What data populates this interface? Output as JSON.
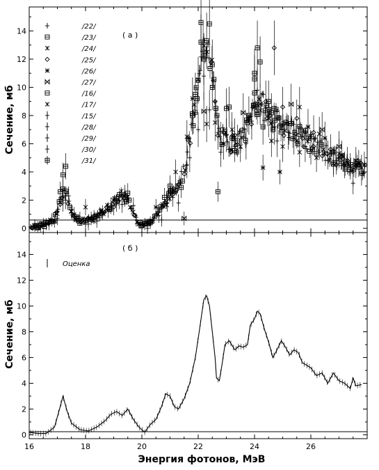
{
  "chart_data": [
    {
      "type": "scatter",
      "panel_label": "( а )",
      "ylabel": "Сечение, мб",
      "xlim": [
        16,
        28
      ],
      "ylim": [
        -0.3,
        15.7
      ],
      "xticks": [
        "16",
        "18",
        "20",
        "22",
        "24",
        "26"
      ],
      "yticks": [
        "0",
        "2",
        "4",
        "6",
        "8",
        "10",
        "12",
        "14"
      ],
      "legend_position": "top-left",
      "series": [
        {
          "name": "/22/",
          "marker": "plus",
          "values": [
            [
              16.3,
              0.1
            ],
            [
              16.7,
              0.3
            ],
            [
              17.0,
              0.7
            ],
            [
              17.2,
              1.8
            ],
            [
              17.4,
              2.3
            ],
            [
              17.6,
              1.0
            ],
            [
              18.0,
              0.3
            ],
            [
              18.4,
              0.5
            ],
            [
              18.8,
              1.3
            ],
            [
              19.2,
              2.0
            ],
            [
              19.4,
              2.4
            ],
            [
              19.8,
              0.6
            ]
          ]
        },
        {
          "name": "/23/",
          "marker": "square",
          "values": [
            [
              17.2,
              3.8
            ],
            [
              17.3,
              4.4
            ],
            [
              20.8,
              2.2
            ],
            [
              21.0,
              3.0
            ],
            [
              21.8,
              8.0
            ],
            [
              22.0,
              10.5
            ],
            [
              22.1,
              14.6
            ],
            [
              22.2,
              12.0
            ],
            [
              22.3,
              13.3
            ],
            [
              22.4,
              14.5
            ],
            [
              22.5,
              10.0
            ],
            [
              22.7,
              2.6
            ],
            [
              23.0,
              8.5
            ],
            [
              23.4,
              6.2
            ],
            [
              23.8,
              8.0
            ],
            [
              24.0,
              11.0
            ],
            [
              24.1,
              12.8
            ],
            [
              24.2,
              11.8
            ],
            [
              24.5,
              9.0
            ]
          ]
        },
        {
          "name": "/24/",
          "marker": "asterisk",
          "values": [
            [
              16.9,
              0.5
            ],
            [
              17.5,
              1.2
            ],
            [
              18.0,
              1.5
            ],
            [
              21.2,
              4.0
            ],
            [
              21.6,
              6.5
            ],
            [
              22.6,
              7.5
            ],
            [
              23.2,
              7.0
            ],
            [
              24.6,
              6.2
            ],
            [
              25.0,
              5.8
            ],
            [
              25.6,
              5.4
            ],
            [
              26.2,
              5.0
            ],
            [
              26.8,
              4.6
            ],
            [
              27.4,
              4.4
            ],
            [
              27.8,
              4.3
            ]
          ]
        },
        {
          "name": "/25/",
          "marker": "diamond",
          "values": [
            [
              18.2,
              0.7
            ],
            [
              19.0,
              1.5
            ],
            [
              22.6,
              9.0
            ],
            [
              23.3,
              6.6
            ],
            [
              24.4,
              9.0
            ],
            [
              24.7,
              12.8
            ],
            [
              25.0,
              8.6
            ],
            [
              25.5,
              7.8
            ],
            [
              26.1,
              6.8
            ],
            [
              26.7,
              5.6
            ],
            [
              27.3,
              4.8
            ]
          ]
        },
        {
          "name": "/26/",
          "marker": "star",
          "values": [
            [
              18.5,
              1.0
            ],
            [
              20.5,
              1.5
            ],
            [
              21.8,
              9.2
            ],
            [
              22.9,
              6.0
            ],
            [
              24.3,
              4.3
            ],
            [
              24.9,
              4.0
            ],
            [
              25.9,
              7.2
            ],
            [
              26.5,
              6.4
            ],
            [
              27.1,
              5.2
            ],
            [
              27.7,
              4.6
            ]
          ]
        },
        {
          "name": "/27/",
          "marker": "bowtie",
          "values": [
            [
              21.5,
              0.7
            ],
            [
              22.2,
              8.3
            ],
            [
              23.6,
              8.2
            ],
            [
              24.2,
              8.8
            ],
            [
              25.3,
              8.8
            ],
            [
              26.4,
              7.0
            ],
            [
              27.0,
              5.8
            ],
            [
              27.6,
              4.8
            ]
          ]
        },
        {
          "name": "/16/",
          "marker": "square",
          "values": [
            [
              16.5,
              0.3
            ],
            [
              17.1,
              2.6
            ],
            [
              19.5,
              2.5
            ],
            [
              20.0,
              0.2
            ],
            [
              20.3,
              0.4
            ],
            [
              21.4,
              2.9
            ],
            [
              21.9,
              9.5
            ],
            [
              23.1,
              8.6
            ],
            [
              24.0,
              9.6
            ],
            [
              24.3,
              7.2
            ]
          ]
        },
        {
          "name": "/17/",
          "marker": "asterisk",
          "values": [
            [
              22.3,
              7.4
            ],
            [
              23.5,
              5.8
            ],
            [
              24.5,
              7.8
            ],
            [
              25.6,
              8.6
            ],
            [
              26.3,
              6.7
            ],
            [
              27.0,
              5.3
            ],
            [
              27.6,
              4.5
            ],
            [
              27.9,
              4.5
            ]
          ]
        },
        {
          "name": "/15/",
          "marker": "plus-bar",
          "values": [
            [
              16.2,
              0.2
            ],
            [
              16.8,
              0.6
            ],
            [
              18.1,
              0.3
            ],
            [
              18.6,
              1.1
            ],
            [
              19.1,
              1.8
            ],
            [
              20.6,
              0.9
            ],
            [
              21.1,
              2.2
            ],
            [
              22.0,
              7.0
            ],
            [
              22.8,
              5.4
            ],
            [
              23.7,
              6.0
            ],
            [
              24.8,
              6.2
            ],
            [
              25.8,
              5.8
            ],
            [
              26.9,
              4.8
            ],
            [
              27.5,
              3.2
            ]
          ]
        },
        {
          "name": "/28/",
          "marker": "plus-bar",
          "values": [
            [
              17.0,
              1.2
            ],
            [
              19.7,
              1.6
            ],
            [
              20.2,
              0.0
            ],
            [
              21.3,
              1.8
            ],
            [
              22.4,
              8.4
            ],
            [
              23.3,
              5.8
            ],
            [
              24.7,
              7.2
            ],
            [
              26.0,
              5.6
            ],
            [
              27.2,
              4.5
            ]
          ]
        },
        {
          "name": "/29/",
          "marker": "plus-bar",
          "values": [
            [
              16.4,
              0.1
            ],
            [
              17.8,
              0.7
            ],
            [
              19.3,
              1.7
            ],
            [
              20.7,
              0.6
            ],
            [
              21.7,
              5.0
            ],
            [
              22.7,
              6.8
            ],
            [
              23.9,
              7.6
            ],
            [
              25.2,
              6.8
            ],
            [
              26.6,
              5.2
            ],
            [
              27.8,
              3.9
            ]
          ]
        },
        {
          "name": "/30/",
          "marker": "plus-bar",
          "values": [
            [
              16.6,
              0.3
            ],
            [
              17.3,
              2.0
            ],
            [
              18.9,
              1.6
            ],
            [
              20.9,
              1.8
            ],
            [
              21.6,
              4.5
            ],
            [
              22.2,
              10.8
            ],
            [
              23.0,
              6.6
            ],
            [
              24.1,
              9.8
            ],
            [
              25.4,
              6.4
            ],
            [
              26.8,
              4.8
            ]
          ]
        },
        {
          "name": "/31/",
          "marker": "square-plus",
          "values": [
            [
              16.2,
              0.2
            ],
            [
              17.2,
              2.8
            ],
            [
              18.3,
              0.8
            ],
            [
              19.4,
              2.2
            ],
            [
              20.1,
              0.3
            ],
            [
              21.0,
              2.6
            ],
            [
              22.1,
              13.2
            ],
            [
              22.5,
              11.6
            ],
            [
              23.2,
              6.4
            ],
            [
              24.0,
              10.6
            ],
            [
              24.6,
              8.2
            ]
          ]
        }
      ],
      "envelope": {
        "x": [
          16.0,
          16.5,
          16.9,
          17.1,
          17.3,
          17.5,
          17.8,
          18.3,
          18.7,
          19.0,
          19.3,
          19.5,
          19.8,
          20.0,
          20.3,
          20.6,
          20.9,
          21.2,
          21.5,
          21.8,
          22.0,
          22.2,
          22.35,
          22.5,
          22.7,
          23.0,
          23.3,
          23.6,
          24.0,
          24.2,
          24.5,
          24.8,
          25.2,
          25.6,
          26.0,
          26.4,
          26.8,
          27.2,
          27.6,
          28.0
        ],
        "y": [
          0.1,
          0.2,
          0.6,
          2.0,
          2.6,
          1.1,
          0.5,
          0.7,
          1.3,
          1.8,
          2.4,
          2.0,
          0.7,
          0.2,
          0.5,
          1.2,
          2.0,
          3.0,
          4.0,
          7.5,
          10.0,
          13.0,
          13.5,
          11.0,
          6.8,
          6.2,
          6.0,
          6.4,
          8.6,
          9.0,
          8.0,
          7.6,
          7.2,
          6.6,
          6.0,
          5.6,
          5.0,
          4.6,
          4.4,
          4.3
        ]
      }
    },
    {
      "type": "line",
      "panel_label": "( б )",
      "legend_label": "Оценка",
      "ylabel": "Сечение, мб",
      "xlabel": "Энергия фотонов, МэВ",
      "xlim": [
        16,
        28
      ],
      "ylim": [
        -0.3,
        15.7
      ],
      "xticks": [
        "16",
        "18",
        "20",
        "22",
        "24",
        "26"
      ],
      "yticks": [
        "0",
        "2",
        "4",
        "6",
        "8",
        "10",
        "12",
        "14"
      ],
      "series": [
        {
          "name": "Оценка",
          "x": [
            16.0,
            16.3,
            16.6,
            16.9,
            17.1,
            17.2,
            17.35,
            17.5,
            17.8,
            18.1,
            18.4,
            18.7,
            18.9,
            19.1,
            19.3,
            19.5,
            19.7,
            19.9,
            20.1,
            20.3,
            20.5,
            20.7,
            20.85,
            21.0,
            21.15,
            21.3,
            21.5,
            21.7,
            21.9,
            22.05,
            22.2,
            22.3,
            22.4,
            22.5,
            22.6,
            22.65,
            22.75,
            22.85,
            22.95,
            23.1,
            23.3,
            23.45,
            23.6,
            23.75,
            23.85,
            24.0,
            24.1,
            24.2,
            24.35,
            24.5,
            24.65,
            24.8,
            24.95,
            25.1,
            25.25,
            25.4,
            25.55,
            25.7,
            25.85,
            26.0,
            26.2,
            26.4,
            26.6,
            26.8,
            27.0,
            27.2,
            27.4,
            27.5,
            27.6,
            27.8
          ],
          "y": [
            0.2,
            0.1,
            0.1,
            0.6,
            2.2,
            3.0,
            1.8,
            0.9,
            0.4,
            0.3,
            0.6,
            1.1,
            1.6,
            1.8,
            1.5,
            2.0,
            1.2,
            0.6,
            0.2,
            0.8,
            1.2,
            2.2,
            3.2,
            3.0,
            2.2,
            2.0,
            2.8,
            4.0,
            6.0,
            8.2,
            10.5,
            10.8,
            10.0,
            8.0,
            6.0,
            4.4,
            4.2,
            5.5,
            7.0,
            7.3,
            6.6,
            6.9,
            6.8,
            7.0,
            8.5,
            9.0,
            9.6,
            9.4,
            8.2,
            7.2,
            6.0,
            6.6,
            7.3,
            6.8,
            6.2,
            6.6,
            6.4,
            5.6,
            5.4,
            5.2,
            4.6,
            4.8,
            4.0,
            4.8,
            4.2,
            4.0,
            3.6,
            4.4,
            3.8,
            3.9
          ]
        }
      ]
    }
  ]
}
